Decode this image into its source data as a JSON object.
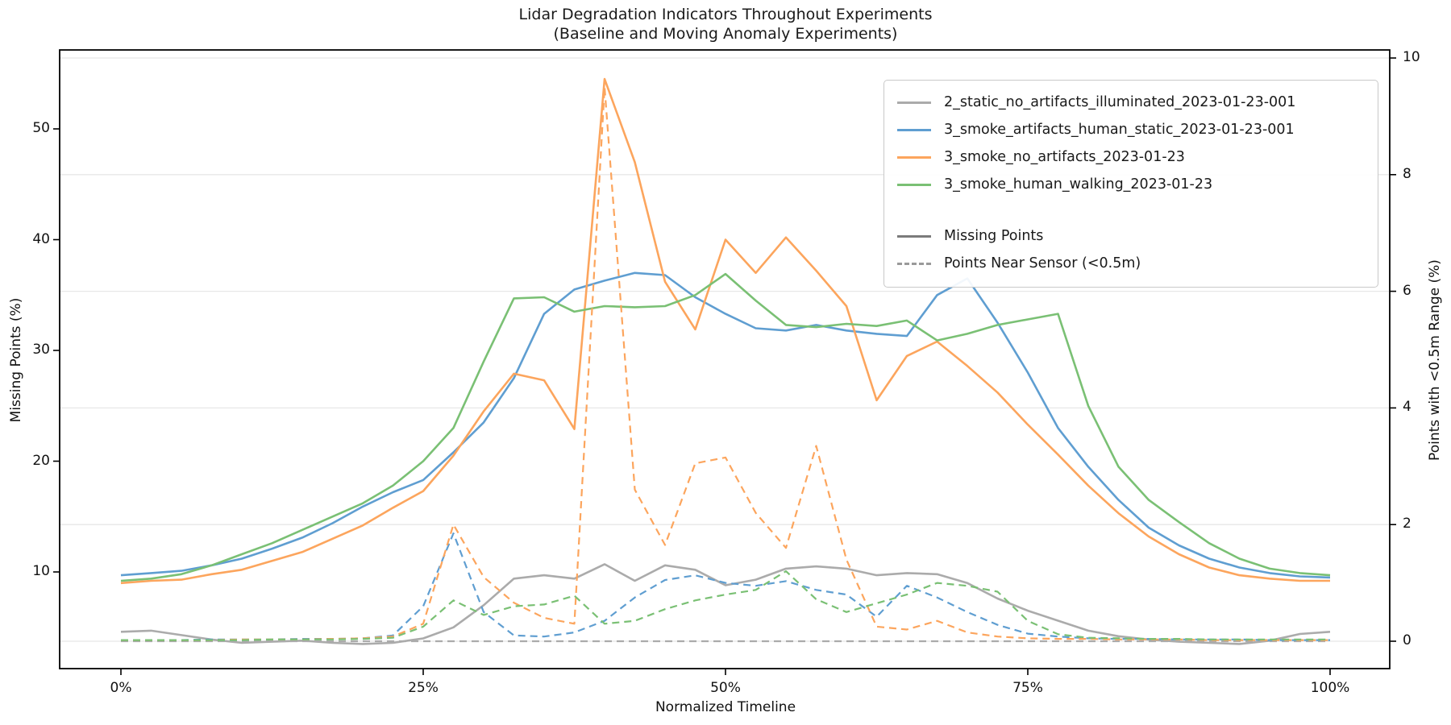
{
  "title": {
    "line1": "Lidar Degradation Indicators Throughout Experiments",
    "line2": "(Baseline and Moving Anomaly Experiments)"
  },
  "axes": {
    "x": {
      "label": "Normalized Timeline",
      "tick_labels": [
        "0%",
        "25%",
        "50%",
        "75%",
        "100%"
      ],
      "tick_values": [
        0,
        25,
        50,
        75,
        100
      ],
      "range": [
        -5,
        105
      ]
    },
    "y_left": {
      "label": "Missing Points (%)",
      "tick_values": [
        10,
        20,
        30,
        40,
        50
      ],
      "range": [
        1.3,
        57.1
      ]
    },
    "y_right": {
      "label": "Points with <0.5m Range (%)",
      "tick_values": [
        0,
        2,
        4,
        6,
        8,
        10
      ],
      "range": [
        -0.46,
        10.14
      ]
    }
  },
  "colors": {
    "gray": "#ababab",
    "blue": "#5f9ed1",
    "orange": "#fca55d",
    "green": "#7ac074",
    "legend_solid_style": "#7b7b7b",
    "legend_dashed_style": "#9a9a9a",
    "grid": "#e7e7e7",
    "spine": "#000000"
  },
  "legend": {
    "series": [
      {
        "label": "2_static_no_artifacts_illuminated_2023-01-23-001",
        "color": "#ababab"
      },
      {
        "label": "3_smoke_artifacts_human_static_2023-01-23-001",
        "color": "#5f9ed1"
      },
      {
        "label": "3_smoke_no_artifacts_2023-01-23",
        "color": "#fca55d"
      },
      {
        "label": "3_smoke_human_walking_2023-01-23",
        "color": "#7ac074"
      }
    ],
    "styles": [
      {
        "label": "Missing Points",
        "color": "#7b7b7b",
        "dash": false
      },
      {
        "label": "Points Near Sensor (<0.5m)",
        "color": "#9a9a9a",
        "dash": true
      }
    ]
  },
  "chart_data": {
    "type": "line",
    "title": "Lidar Degradation Indicators Throughout Experiments (Baseline and Moving Anomaly Experiments)",
    "xlabel": "Normalized Timeline",
    "ylabel_left": "Missing Points (%)",
    "ylabel_right": "Points with <0.5m Range (%)",
    "x_unit": "percent_of_timeline",
    "grid": "horizontal_right_axis_ticks",
    "legend_position": "upper right",
    "x": [
      0,
      2.5,
      5,
      7.5,
      10,
      12.5,
      15,
      17.5,
      20,
      22.5,
      25,
      27.5,
      30,
      32.5,
      35,
      37.5,
      40,
      42.5,
      45,
      47.5,
      50,
      52.5,
      55,
      57.5,
      60,
      62.5,
      65,
      67.5,
      70,
      72.5,
      75,
      77.5,
      80,
      82.5,
      85,
      87.5,
      90,
      92.5,
      95,
      97.5,
      100
    ],
    "series": [
      {
        "name": "2_static_no_artifacts_illuminated_2023-01-23-001 - Missing Points",
        "axis": "left",
        "style": "solid",
        "color": "#ababab",
        "values": [
          4.6,
          4.7,
          4.3,
          3.9,
          3.6,
          3.7,
          3.8,
          3.6,
          3.5,
          3.6,
          4.0,
          5.0,
          7.0,
          9.4,
          9.7,
          9.4,
          10.7,
          9.2,
          10.6,
          10.2,
          8.8,
          9.3,
          10.3,
          10.5,
          10.3,
          9.7,
          9.9,
          9.8,
          9.0,
          7.6,
          6.5,
          5.6,
          4.7,
          4.2,
          3.9,
          3.7,
          3.6,
          3.5,
          3.8,
          4.4,
          4.6
        ]
      },
      {
        "name": "3_smoke_artifacts_human_static_2023-01-23-001 - Missing Points",
        "axis": "left",
        "style": "solid",
        "color": "#5f9ed1",
        "values": [
          9.7,
          9.9,
          10.1,
          10.6,
          11.2,
          12.1,
          13.1,
          14.4,
          15.9,
          17.2,
          18.3,
          20.8,
          23.5,
          27.5,
          33.3,
          35.5,
          36.3,
          37.0,
          36.8,
          34.8,
          33.3,
          32.0,
          31.8,
          32.3,
          31.8,
          31.5,
          31.3,
          35.0,
          36.5,
          32.5,
          28.0,
          23.0,
          19.5,
          16.5,
          14.0,
          12.4,
          11.2,
          10.4,
          9.9,
          9.6,
          9.5
        ]
      },
      {
        "name": "3_smoke_no_artifacts_2023-01-23 - Missing Points",
        "axis": "left",
        "style": "solid",
        "color": "#fca55d",
        "values": [
          9.0,
          9.2,
          9.3,
          9.8,
          10.2,
          11.0,
          11.8,
          13.0,
          14.2,
          15.8,
          17.3,
          20.5,
          24.5,
          27.9,
          27.3,
          22.9,
          54.5,
          47.0,
          36.2,
          31.9,
          40.0,
          37.0,
          40.2,
          37.2,
          34.0,
          25.5,
          29.5,
          30.8,
          28.6,
          26.2,
          23.3,
          20.6,
          17.8,
          15.3,
          13.2,
          11.6,
          10.4,
          9.7,
          9.4,
          9.2,
          9.2
        ]
      },
      {
        "name": "3_smoke_human_walking_2023-01-23 - Missing Points",
        "axis": "left",
        "style": "solid",
        "color": "#7ac074",
        "values": [
          9.2,
          9.4,
          9.8,
          10.6,
          11.6,
          12.6,
          13.8,
          15.0,
          16.2,
          17.8,
          20.0,
          23.0,
          29.0,
          34.7,
          34.8,
          33.5,
          34.0,
          33.9,
          34.0,
          35.0,
          36.9,
          34.5,
          32.3,
          32.1,
          32.4,
          32.2,
          32.7,
          30.9,
          31.5,
          32.3,
          32.8,
          33.3,
          25.0,
          19.5,
          16.5,
          14.5,
          12.6,
          11.2,
          10.3,
          9.9,
          9.7
        ]
      },
      {
        "name": "2_static_no_artifacts_illuminated_2023-01-23-001 - Points Near Sensor (<0.5m)",
        "axis": "right",
        "style": "dashed",
        "color": "#ababab",
        "values": [
          0.0,
          0.0,
          0.0,
          0.0,
          0.0,
          0.0,
          0.0,
          0.0,
          0.0,
          0.0,
          0.0,
          0.0,
          0.0,
          0.0,
          0.0,
          0.0,
          0.0,
          0.0,
          0.0,
          0.0,
          0.0,
          0.0,
          0.0,
          0.0,
          0.0,
          0.0,
          0.0,
          0.0,
          0.0,
          0.0,
          0.0,
          0.0,
          0.0,
          0.0,
          0.0,
          0.0,
          0.0,
          0.0,
          0.0,
          0.0,
          0.0
        ]
      },
      {
        "name": "3_smoke_artifacts_human_static_2023-01-23-001 - Points Near Sensor (<0.5m)",
        "axis": "right",
        "style": "dashed",
        "color": "#5f9ed1",
        "values": [
          0.02,
          0.02,
          0.02,
          0.03,
          0.03,
          0.03,
          0.04,
          0.04,
          0.05,
          0.1,
          0.6,
          1.85,
          0.5,
          0.1,
          0.08,
          0.15,
          0.35,
          0.75,
          1.05,
          1.13,
          1.0,
          0.95,
          1.03,
          0.88,
          0.8,
          0.42,
          0.95,
          0.75,
          0.5,
          0.28,
          0.13,
          0.08,
          0.05,
          0.04,
          0.04,
          0.03,
          0.03,
          0.03,
          0.02,
          0.02,
          0.02
        ]
      },
      {
        "name": "3_smoke_no_artifacts_2023-01-23 - Points Near Sensor (<0.5m)",
        "axis": "right",
        "style": "dashed",
        "color": "#fca55d",
        "values": [
          0.02,
          0.02,
          0.02,
          0.02,
          0.03,
          0.03,
          0.03,
          0.04,
          0.05,
          0.08,
          0.3,
          2.0,
          1.1,
          0.66,
          0.4,
          0.3,
          9.5,
          2.6,
          1.65,
          3.05,
          3.15,
          2.2,
          1.6,
          3.35,
          1.4,
          0.25,
          0.2,
          0.35,
          0.15,
          0.08,
          0.05,
          0.04,
          0.04,
          0.03,
          0.03,
          0.03,
          0.02,
          0.02,
          0.02,
          0.02,
          0.02
        ]
      },
      {
        "name": "3_smoke_human_walking_2023-01-23 - Points Near Sensor (<0.5m)",
        "axis": "right",
        "style": "dashed",
        "color": "#7ac074",
        "values": [
          0.02,
          0.02,
          0.02,
          0.02,
          0.02,
          0.03,
          0.03,
          0.03,
          0.04,
          0.06,
          0.25,
          0.7,
          0.45,
          0.6,
          0.63,
          0.78,
          0.3,
          0.35,
          0.55,
          0.7,
          0.8,
          0.88,
          1.2,
          0.72,
          0.5,
          0.65,
          0.8,
          1.0,
          0.95,
          0.85,
          0.35,
          0.12,
          0.06,
          0.05,
          0.04,
          0.04,
          0.03,
          0.03,
          0.03,
          0.03,
          0.03
        ]
      }
    ]
  }
}
